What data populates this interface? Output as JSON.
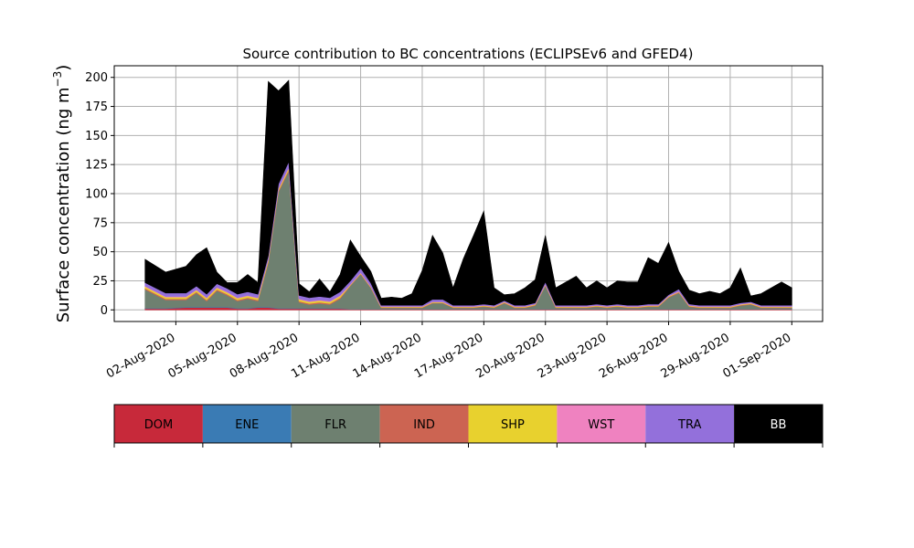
{
  "chart_data": {
    "type": "area",
    "stacked": true,
    "title": "Source contribution to BC concentrations (ECLIPSEv6 and GFED4)",
    "ylabel": "Surface concentration (ng m",
    "ylabel_unit_superscript": "−3",
    "ylabel_close": ")",
    "xlabel": "",
    "ylim": [
      -10,
      210
    ],
    "yticks": [
      0,
      25,
      50,
      75,
      100,
      125,
      150,
      175,
      200
    ],
    "xlim": [
      "2020-07-30T00:00",
      "2020-09-02T12:00"
    ],
    "xticks": [
      "2020-08-02",
      "2020-08-05",
      "2020-08-08",
      "2020-08-11",
      "2020-08-14",
      "2020-08-17",
      "2020-08-20",
      "2020-08-23",
      "2020-08-26",
      "2020-08-29",
      "2020-09-01"
    ],
    "xtick_labels": [
      "02-Aug-2020",
      "05-Aug-2020",
      "08-Aug-2020",
      "11-Aug-2020",
      "14-Aug-2020",
      "17-Aug-2020",
      "20-Aug-2020",
      "23-Aug-2020",
      "26-Aug-2020",
      "29-Aug-2020",
      "01-Sep-2020"
    ],
    "grid": true,
    "legend_placement": "colorbar below plot",
    "x_dates": [
      "2020-07-31T12:00",
      "2020-08-01T12:00",
      "2020-08-02T12:00",
      "2020-08-03T00:00",
      "2020-08-03T12:00",
      "2020-08-04T00:00",
      "2020-08-04T12:00",
      "2020-08-05T00:00",
      "2020-08-05T12:00",
      "2020-08-06T00:00",
      "2020-08-06T12:00",
      "2020-08-07T00:00",
      "2020-08-07T12:00",
      "2020-08-08T00:00",
      "2020-08-08T12:00",
      "2020-08-09T00:00",
      "2020-08-09T12:00",
      "2020-08-10T00:00",
      "2020-08-10T12:00",
      "2020-08-11T00:00",
      "2020-08-11T12:00",
      "2020-08-12T00:00",
      "2020-08-12T12:00",
      "2020-08-13T00:00",
      "2020-08-13T12:00",
      "2020-08-14T00:00",
      "2020-08-14T12:00",
      "2020-08-15T00:00",
      "2020-08-15T12:00",
      "2020-08-16T00:00",
      "2020-08-16T12:00",
      "2020-08-17T00:00",
      "2020-08-17T12:00",
      "2020-08-18T00:00",
      "2020-08-18T12:00",
      "2020-08-19T00:00",
      "2020-08-19T12:00",
      "2020-08-20T00:00",
      "2020-08-20T12:00",
      "2020-08-21T00:00",
      "2020-08-21T12:00",
      "2020-08-22T00:00",
      "2020-08-22T12:00",
      "2020-08-23T00:00",
      "2020-08-23T12:00",
      "2020-08-24T00:00",
      "2020-08-24T12:00",
      "2020-08-25T00:00",
      "2020-08-25T12:00",
      "2020-08-26T00:00",
      "2020-08-26T12:00",
      "2020-08-27T00:00",
      "2020-08-27T12:00",
      "2020-08-28T00:00",
      "2020-08-28T12:00",
      "2020-08-29T00:00",
      "2020-08-29T12:00",
      "2020-08-30T00:00",
      "2020-08-30T12:00",
      "2020-08-31T00:00",
      "2020-08-31T12:00",
      "2020-09-01T00:00"
    ],
    "series": [
      {
        "name": "DOM",
        "color": "#c7293a",
        "values": [
          1,
          1,
          2,
          2,
          2,
          2,
          2,
          1,
          1,
          2,
          2,
          1,
          1,
          1,
          1,
          1,
          1,
          1,
          0.5,
          0.5,
          0.5,
          0.5,
          0.5,
          0.5,
          0.5,
          0.5,
          0.5,
          0.5,
          0.5,
          0.5,
          0.5,
          0.5,
          0.5,
          0.5,
          0.5,
          0.5,
          0.5,
          0.5,
          0.5,
          0.5,
          0.5,
          0.5,
          0.5,
          0.5,
          0.5,
          0.5,
          0.5,
          0.5,
          0.5,
          0.5,
          0.5,
          0.5,
          0.5,
          0.5,
          0.5,
          0.5,
          0.5,
          0.5,
          0.5,
          0.5,
          0.5,
          0.5
        ]
      },
      {
        "name": "ENE",
        "color": "#3a7bb4",
        "values": [
          0.5,
          0.5,
          0.5,
          0.5,
          0.5,
          0.5,
          0.5,
          0.5,
          0.5,
          0.5,
          0.5,
          0.5,
          0.5,
          0.5,
          0.5,
          0.5,
          0.5,
          0.5,
          0.2,
          0.2,
          0.2,
          0.2,
          0.2,
          0.2,
          0.2,
          0.2,
          0.2,
          0.2,
          0.2,
          0.2,
          0.2,
          0.2,
          0.2,
          0.2,
          0.2,
          0.2,
          0.2,
          0.2,
          0.2,
          0.2,
          0.2,
          0.2,
          0.2,
          0.2,
          0.2,
          0.2,
          0.2,
          0.2,
          0.2,
          0.2,
          0.2,
          0.2,
          0.2,
          0.2,
          0.2,
          0.2,
          0.2,
          0.2,
          0.2,
          0.2,
          0.2,
          0.2
        ]
      },
      {
        "name": "FLR",
        "color": "#6e8070",
        "values": [
          16,
          7,
          6,
          12,
          5,
          14,
          10,
          6,
          8,
          5,
          38,
          100,
          118,
          5,
          3,
          4,
          3,
          8,
          20,
          30,
          18,
          1,
          1,
          1,
          1,
          1,
          5,
          5,
          1,
          1,
          1,
          2,
          1,
          5,
          1,
          1,
          3,
          20,
          1,
          1,
          1,
          1,
          2,
          1,
          2,
          1,
          1,
          2,
          2,
          10,
          14,
          2,
          1,
          1,
          1,
          1,
          3,
          4,
          1,
          1,
          1,
          1
        ]
      },
      {
        "name": "IND",
        "color": "#cc6452",
        "values": [
          1,
          1,
          1,
          1,
          1,
          1,
          1,
          1,
          1,
          1,
          1,
          1,
          1,
          1,
          1,
          1,
          1,
          1,
          0.5,
          0.5,
          0.5,
          0.5,
          0.5,
          0.5,
          0.5,
          0.5,
          0.5,
          0.5,
          0.5,
          0.5,
          0.5,
          0.5,
          0.5,
          0.5,
          0.5,
          0.5,
          0.5,
          0.5,
          0.5,
          0.5,
          0.5,
          0.5,
          0.5,
          0.5,
          0.5,
          0.5,
          0.5,
          0.5,
          0.5,
          0.5,
          0.5,
          0.5,
          0.5,
          0.5,
          0.5,
          0.5,
          0.5,
          0.5,
          0.5,
          0.5,
          0.5,
          0.5
        ]
      },
      {
        "name": "SHP",
        "color": "#e8d12e",
        "values": [
          1.5,
          1.5,
          1.5,
          1.5,
          1.5,
          1.5,
          1.5,
          1.5,
          1.5,
          1.5,
          1.5,
          1.5,
          1.5,
          1.5,
          1.5,
          1.5,
          1.5,
          1.5,
          0.5,
          0.5,
          0.5,
          0.5,
          0.5,
          0.5,
          0.5,
          0.5,
          0.5,
          0.5,
          0.5,
          0.5,
          0.5,
          0.5,
          0.5,
          0.5,
          0.5,
          0.5,
          0.5,
          0.5,
          0.5,
          0.5,
          0.5,
          0.5,
          0.5,
          0.5,
          0.5,
          0.5,
          0.5,
          0.5,
          0.5,
          0.5,
          0.5,
          0.5,
          0.5,
          0.5,
          0.5,
          0.5,
          0.5,
          0.5,
          0.5,
          0.5,
          0.5,
          0.5
        ]
      },
      {
        "name": "WST",
        "color": "#ef82c0",
        "values": [
          0.5,
          0.5,
          0.5,
          0.5,
          0.5,
          0.5,
          0.5,
          0.5,
          0.5,
          0.5,
          0.5,
          0.5,
          0.5,
          0.5,
          0.5,
          0.5,
          0.5,
          0.5,
          0.3,
          0.3,
          0.3,
          0.3,
          0.3,
          0.3,
          0.3,
          0.3,
          0.3,
          0.3,
          0.3,
          0.3,
          0.3,
          0.3,
          0.3,
          0.3,
          0.3,
          0.3,
          0.3,
          0.3,
          0.3,
          0.3,
          0.3,
          0.3,
          0.3,
          0.3,
          0.3,
          0.3,
          0.3,
          0.3,
          0.3,
          0.3,
          0.3,
          0.3,
          0.3,
          0.3,
          0.3,
          0.3,
          0.3,
          0.3,
          0.3,
          0.3,
          0.3,
          0.3
        ]
      },
      {
        "name": "TRA",
        "color": "#9370db",
        "values": [
          3,
          3,
          3,
          3,
          3,
          3,
          3,
          3,
          3,
          3,
          3,
          4,
          5,
          3,
          3,
          3,
          3,
          3,
          3,
          4,
          3,
          1,
          1,
          1,
          1,
          1,
          2,
          2,
          1,
          1,
          1,
          1,
          1,
          1,
          1,
          1,
          1,
          2,
          1,
          1,
          1,
          1,
          1,
          1,
          1,
          1,
          1,
          1,
          1,
          1,
          2,
          1,
          1,
          1,
          1,
          1,
          1,
          1,
          1,
          1,
          1,
          1
        ]
      },
      {
        "name": "BB",
        "color": "#000000",
        "values": [
          20,
          18,
          23,
          27,
          40,
          10,
          5,
          10,
          15,
          10,
          150,
          80,
          70,
          10,
          5,
          15,
          5,
          15,
          35,
          10,
          10,
          6,
          7,
          6,
          10,
          30,
          55,
          40,
          15,
          40,
          60,
          80,
          15,
          5,
          10,
          15,
          20,
          40,
          15,
          20,
          25,
          15,
          20,
          15,
          20,
          20,
          20,
          40,
          35,
          45,
          15,
          12,
          10,
          12,
          10,
          15,
          30,
          5,
          10,
          15,
          20,
          15
        ]
      }
    ]
  }
}
